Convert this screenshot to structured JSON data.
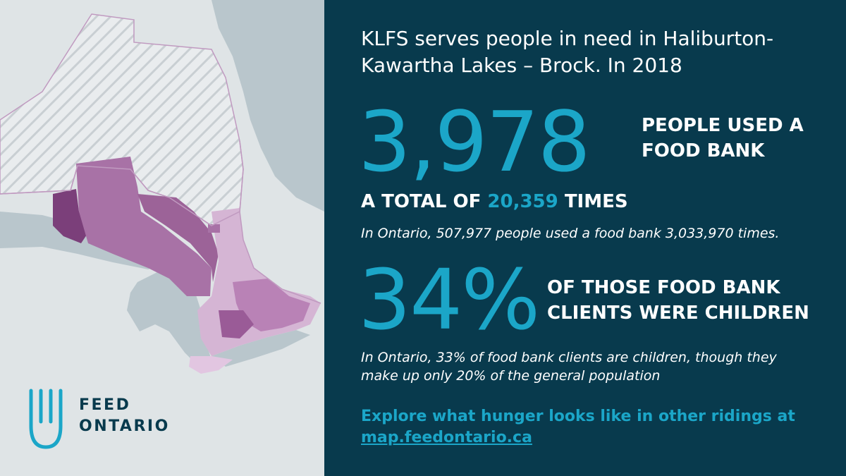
{
  "logo": {
    "line1": "FEED",
    "line2": "ONTARIO",
    "icon": "hand-logo-icon"
  },
  "headline": {
    "line1": "KLFS serves people in need in Haliburton-",
    "line2": "Kawartha Lakes – Brock.  In 2018"
  },
  "stat_people": {
    "value": "3,978",
    "label_line1": "PEOPLE USED A",
    "label_line2": "FOOD BANK"
  },
  "stat_visits": {
    "prefix": "A TOTAL OF",
    "value": "20,359",
    "suffix": "TIMES"
  },
  "ontario_note_1": "In Ontario, 507,977 people used a food bank 3,033,970 times.",
  "stat_children": {
    "value": "34%",
    "label_line1": "OF THOSE FOOD BANK",
    "label_line2": "CLIENTS WERE CHILDREN"
  },
  "ontario_note_2": {
    "line1": "In Ontario, 33% of food bank clients are children, though they",
    "line2": "make up only 20% of the general population"
  },
  "cta": {
    "text": "Explore what hunger looks like in other ridings at",
    "link": "map.feedontario.ca"
  },
  "colors": {
    "panel_bg": "#083a4d",
    "accent": "#1ba6c8",
    "map_bg": "#dfe4e6",
    "region_dark": "#7b3f7a",
    "region_mid": "#a872a6",
    "region_light": "#d5b5d4"
  }
}
